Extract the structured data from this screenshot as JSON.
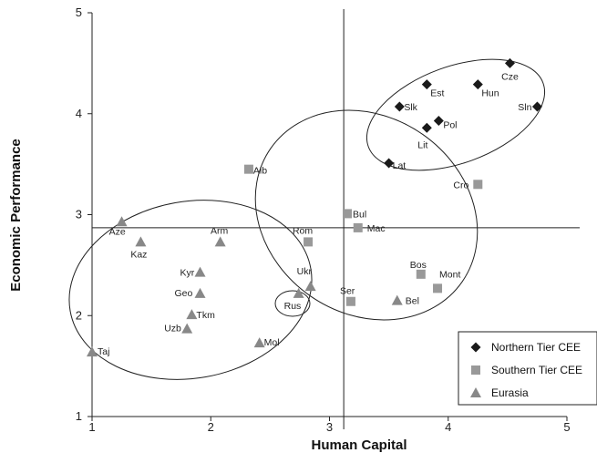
{
  "chart_data": {
    "type": "scatter",
    "title": "",
    "xlabel": "Human Capital",
    "ylabel": "Economic Performance",
    "xlim": [
      1,
      5
    ],
    "ylim": [
      1,
      5
    ],
    "xticks": [
      "1",
      "2",
      "3",
      "4",
      "5"
    ],
    "yticks": [
      "1",
      "2",
      "3",
      "4",
      "5"
    ],
    "grid": false,
    "reference_lines": {
      "x": 3.12,
      "y": 2.87
    },
    "legend_position": "bottom-right",
    "series": [
      {
        "name": "Northern Tier CEE",
        "marker": "diamond",
        "color": "#1a1a1a",
        "points": [
          {
            "label": "Cze",
            "x": 4.52,
            "y": 4.5
          },
          {
            "label": "Est",
            "x": 3.82,
            "y": 4.29
          },
          {
            "label": "Hun",
            "x": 4.25,
            "y": 4.29
          },
          {
            "label": "Slk",
            "x": 3.59,
            "y": 4.07
          },
          {
            "label": "Sln",
            "x": 4.75,
            "y": 4.07
          },
          {
            "label": "Pol",
            "x": 3.92,
            "y": 3.93
          },
          {
            "label": "Lit",
            "x": 3.82,
            "y": 3.86
          },
          {
            "label": "Lat",
            "x": 3.5,
            "y": 3.51
          }
        ]
      },
      {
        "name": "Southern Tier CEE",
        "marker": "square",
        "color": "#999999",
        "points": [
          {
            "label": "Alb",
            "x": 2.32,
            "y": 3.45
          },
          {
            "label": "Cro",
            "x": 4.25,
            "y": 3.3
          },
          {
            "label": "Bul",
            "x": 3.15,
            "y": 3.01
          },
          {
            "label": "Mac",
            "x": 3.24,
            "y": 2.87
          },
          {
            "label": "Rom",
            "x": 2.82,
            "y": 2.73
          },
          {
            "label": "Bos",
            "x": 3.77,
            "y": 2.41
          },
          {
            "label": "Mont",
            "x": 3.91,
            "y": 2.27
          },
          {
            "label": "Ser",
            "x": 3.18,
            "y": 2.14
          }
        ]
      },
      {
        "name": "Eurasia",
        "marker": "triangle",
        "color": "#888888",
        "points": [
          {
            "label": "Aze",
            "x": 1.25,
            "y": 2.93
          },
          {
            "label": "Kaz",
            "x": 1.41,
            "y": 2.73
          },
          {
            "label": "Arm",
            "x": 2.08,
            "y": 2.73
          },
          {
            "label": "Kyr",
            "x": 1.91,
            "y": 2.43
          },
          {
            "label": "Geo",
            "x": 1.91,
            "y": 2.22
          },
          {
            "label": "Ukr",
            "x": 2.84,
            "y": 2.29
          },
          {
            "label": "Rus",
            "x": 2.74,
            "y": 2.22
          },
          {
            "label": "Bel",
            "x": 3.57,
            "y": 2.15
          },
          {
            "label": "Tkm",
            "x": 1.84,
            "y": 2.01
          },
          {
            "label": "Uzb",
            "x": 1.8,
            "y": 1.87
          },
          {
            "label": "Mol",
            "x": 2.41,
            "y": 1.73
          },
          {
            "label": "Taj",
            "x": 1.0,
            "y": 1.64
          }
        ]
      }
    ]
  }
}
